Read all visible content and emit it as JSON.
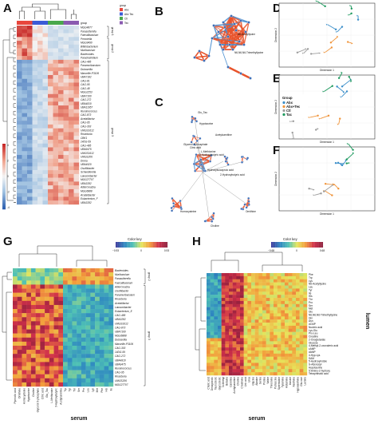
{
  "panel_labels": [
    "A",
    "B",
    "C",
    "D",
    "E",
    "F",
    "G",
    "H"
  ],
  "panel_a": {
    "legend_title": "group",
    "groups": [
      {
        "name": "Abx",
        "color": "#e8463c"
      },
      {
        "name": "Abx Tec",
        "color": "#3b5bd6"
      },
      {
        "name": "Ctl",
        "color": "#49a84c"
      },
      {
        "name": "Tec",
        "color": "#8a5ab0"
      }
    ],
    "col_bar_label": "group",
    "row_group_labels": [
      "group 1",
      "group 2",
      "group 3"
    ],
    "row_labels": [
      "MGG4877",
      "Parasutterella",
      "Faecalibaculum",
      "Prevotella",
      "MGG9490",
      "Bifidobacterium",
      "Muribaculum",
      "Bacteroides",
      "Paraclostridium",
      "CAG-485",
      "Paramuribaculum",
      "Duboseilla",
      "Marseille-P3106",
      "UBA7182",
      "CAG-81",
      "CAG-95",
      "CAG-48",
      "MGG2253",
      "UBA7160",
      "CAG-272",
      "UBA4810",
      "UBA11957",
      "Ruminococcus",
      "CAG-873",
      "Acetatifactor",
      "CAG-95",
      "CAG-303",
      "UMGS1612",
      "Roseburia",
      "CBK1",
      "14DG-59",
      "CAG-485",
      "UBA9475",
      "UMGS1612",
      "UMGS206",
      "Dorea",
      "UBA4920",
      "Oscillibacter",
      "Schaedlerella",
      "Lawsonibacter",
      "MGG27707",
      "UBA3282",
      "Adlercreutzia",
      "MGG6888",
      "Acutalibacter",
      "Eubacterium_F",
      "UBA3282"
    ],
    "legend_ticks": [
      "4",
      "2",
      "0",
      "-2",
      "-4"
    ]
  },
  "panel_b": {
    "node_labels": [
      "N6-Acetyllysine",
      "N6,N6,N6-Trimethyllysine"
    ]
  },
  "panel_c": {
    "node_labels": [
      "Glu_Tau",
      "Hypotaurine",
      "Acetylcarnitine",
      "Glycerol 3-phosphate",
      "L-Methionine",
      "3-Hydroxybutyric acid",
      "Hydroxyisocaproic acid",
      "2-Hydroxybutyric acid",
      "Citric acid",
      "Ornithine",
      "Homocysteine",
      "Choline"
    ]
  },
  "panels_def": {
    "legend_title": "Group",
    "groups": [
      {
        "name": "Abx",
        "color": "#3a8ec9"
      },
      {
        "name": "Abx+Tec",
        "color": "#f0943a"
      },
      {
        "name": "Ctl",
        "color": "#9c9c9c"
      },
      {
        "name": "Tac",
        "color": "#1f9a5f"
      }
    ],
    "xlabel": "Dimension 1",
    "ylabel": "Dimension 2"
  },
  "panel_g": {
    "color_key_title": "Color key",
    "color_key_ticks": [
      "−0.93",
      "0",
      "0.93"
    ],
    "row_group_labels": [
      "group 2",
      "group 3"
    ],
    "row_labels": [
      "Bacteroides",
      "Muribaculum",
      "Parasutterella",
      "Faecalibaculum",
      "Adlercreutzia",
      "Oscillibacter",
      "Paramuribaculum",
      "Roseburia",
      "Acetatifactor",
      "Lawsonibacter",
      "Eubacterium_E",
      "CAG-485",
      "UBA3282",
      "UMGS1612",
      "CAG-873",
      "UBA7160",
      "MGG6888",
      "Duboseilla",
      "Marseille-P3106",
      "CAG-303",
      "14DG-59",
      "CAG-272",
      "UBA4810",
      "UBA9475",
      "Ruminococcus",
      "CAG-95",
      "Roseburia",
      "UMGS206",
      "MGG27707"
    ],
    "col_labels": [
      "Pipecolic acid",
      "Ornithine",
      "Homocysteine",
      "Hypotaurine",
      "Choline",
      "Glycerol 3-phosphate",
      "Citric acid",
      "Glu_Tau",
      "L-Methionine",
      "3-Hydroxybutyric",
      "Acetylcarnitine",
      "Trp",
      "Tyr",
      "Thr",
      "Ser",
      "Pro",
      "Leu",
      "Lys",
      "Met",
      "Phe",
      "His",
      "Ile"
    ],
    "xlabel": "serum"
  },
  "panel_h": {
    "color_key_title": "Color key",
    "color_key_ticks": [
      "−0.68",
      "0",
      "0.68"
    ],
    "row_labels": [
      "Phe",
      "Trp",
      "Lys",
      "N6-Acetyllysine",
      "Leu",
      "Tyr",
      "Ile",
      "His",
      "Thr",
      "Pro",
      "Ser",
      "Met",
      "Glu",
      "N6,N6,N6-Trimethyllysine",
      "Gln",
      "Asn",
      "dCMP",
      "Nucleic acid",
      "Lys-Glu",
      "Pro-Leu",
      "Creatine",
      "2-Oxoglutarate",
      "Glucose",
      "4-Methyl-2-oxovaleric acid",
      "cAMP",
      "dAMP",
      "4-Hyp-Lys",
      "SAM",
      "5-Hydroxyindole",
      "S-Adenosyl",
      "Hypotaurine",
      "5-Amino-2-hydroxy",
      "Tetraphthalic acid"
    ],
    "col_labels": [
      "Cholic acid",
      "Deoxycholic",
      "Taurocholic",
      "Glycocholic",
      "N-Methyl",
      "Betaine",
      "Carnitine",
      "Acetylcarnitine",
      "Choline",
      "Creatinine",
      "Uric acid",
      "Urea",
      "Glycine",
      "Alanine",
      "Serine",
      "Proline",
      "Valine",
      "Threonine",
      "Putrescine",
      "Spermidine",
      "Tyramine",
      "Histamine",
      "Inosine",
      "Xanthine",
      "Hypoxanthine",
      "Glucose",
      "Lactate"
    ],
    "xlabel": "serum",
    "ylabel": "lumen"
  }
}
